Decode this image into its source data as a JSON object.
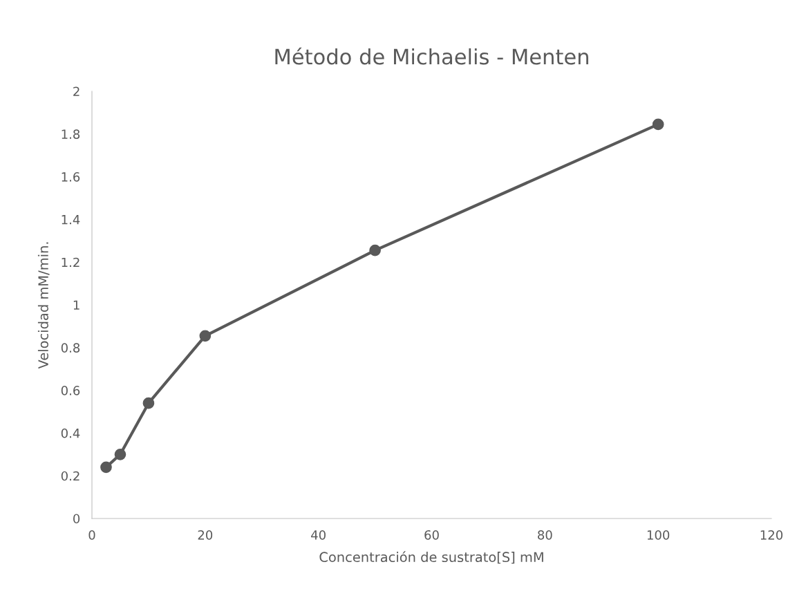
{
  "chart_data": {
    "type": "line",
    "title": "Método de Michaelis - Menten",
    "xlabel": "Concentración de sustrato[S] mM",
    "ylabel": "Velocidad mM/min.",
    "x": [
      2.5,
      5,
      10,
      20,
      50,
      100
    ],
    "series": [
      {
        "color": "#595959",
        "values": [
          0.24,
          0.3,
          0.54,
          0.855,
          1.255,
          1.845
        ]
      }
    ],
    "xlim": [
      0,
      120
    ],
    "xticks": [
      0,
      20,
      40,
      60,
      80,
      100,
      120
    ],
    "ylim": [
      0,
      2
    ],
    "yticks": [
      0,
      0.2,
      0.4,
      0.6,
      0.8,
      1,
      1.2,
      1.4,
      1.6,
      1.8,
      2
    ],
    "grid": false,
    "marker": "circle",
    "line_style": "solid"
  }
}
